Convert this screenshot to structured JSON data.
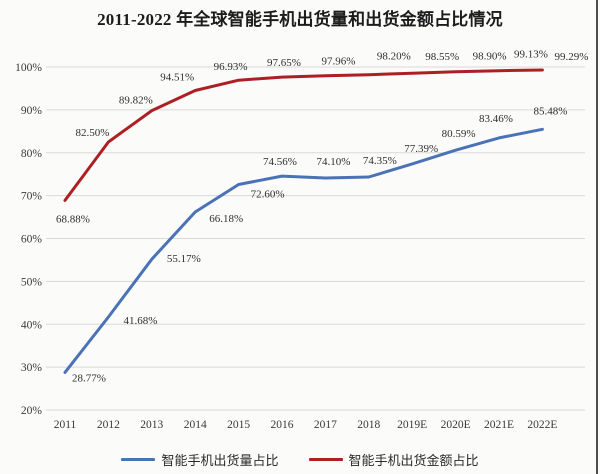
{
  "chart_data": {
    "type": "line",
    "title": "2011-2022 年全球智能手机出货量和出货金额占比情况",
    "categories": [
      "2011",
      "2012",
      "2013",
      "2014",
      "2015",
      "2016",
      "2017",
      "2018",
      "2019E",
      "2020E",
      "2021E",
      "2022E"
    ],
    "series": [
      {
        "name": "智能手机出货量占比",
        "color": "#4a72b6",
        "values": [
          28.77,
          41.68,
          55.17,
          66.18,
          72.6,
          74.56,
          74.1,
          74.35,
          77.39,
          80.59,
          83.46,
          85.48
        ],
        "labels": [
          "28.77%",
          "41.68%",
          "55.17%",
          "66.18%",
          "72.60%",
          "74.56%",
          "74.10%",
          "74.35%",
          "77.39%",
          "80.59%",
          "83.46%",
          "85.48%"
        ]
      },
      {
        "name": "智能手机出货金额占比",
        "color": "#ac2024",
        "values": [
          68.88,
          82.5,
          89.82,
          94.51,
          96.93,
          97.65,
          97.96,
          98.2,
          98.55,
          98.9,
          99.13,
          99.29
        ],
        "labels": [
          "68.88%",
          "82.50%",
          "89.82%",
          "94.51%",
          "96.93%",
          "97.65%",
          "97.96%",
          "98.20%",
          "98.55%",
          "98.90%",
          "99.13%",
          "99.29%"
        ]
      }
    ],
    "y_ticks": [
      "100%",
      "90%",
      "80%",
      "70%",
      "60%",
      "50%",
      "40%",
      "30%",
      "20%"
    ],
    "ylim": [
      20,
      100
    ],
    "xlabel": "",
    "ylabel": "",
    "grid": true,
    "legend_position": "bottom",
    "colors": {
      "gridline": "#d9d9d9",
      "tick_text": "#3a3a3a",
      "data_label_text": "#2e2e2e"
    }
  }
}
